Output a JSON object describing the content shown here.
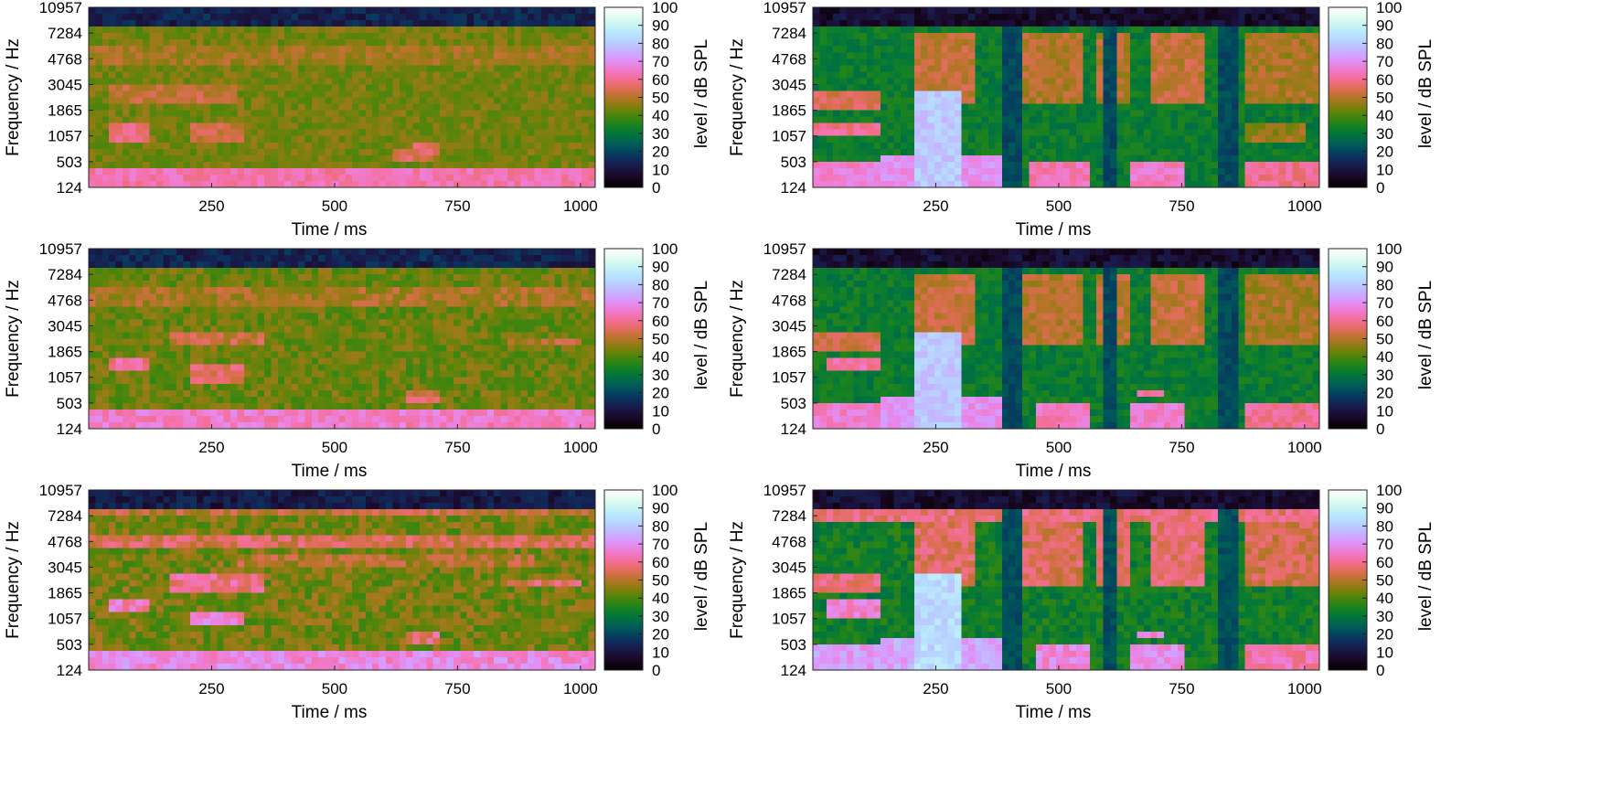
{
  "chart_data": [
    {
      "type": "heatmap",
      "panel": "unprocessed-1",
      "column": "left",
      "row": 1,
      "xlabel": "Time / ms",
      "ylabel": "Frequency / Hz",
      "x_ticks": [
        250,
        500,
        750,
        1000
      ],
      "xlim": [
        0,
        1030
      ],
      "y_ticks": [
        "124",
        "503",
        "1057",
        "1865",
        "3045",
        "4768",
        "7284",
        "10957"
      ],
      "colorbar_label": "level / dB SPL",
      "colorbar_ticks": [
        0,
        10,
        20,
        30,
        40,
        50,
        60,
        70,
        80,
        90,
        100
      ],
      "clim": [
        0,
        100
      ],
      "colormap": "cubehelix",
      "profile": {
        "bg": 44,
        "noise": 4,
        "top_band": 14,
        "bands": [
          {
            "f": [
              0,
              0.8
            ],
            "t": [
              0,
              1030
            ],
            "level": 63
          },
          {
            "f": [
              1.8,
              2.6
            ],
            "t": [
              40,
              130
            ],
            "level": 58
          },
          {
            "f": [
              1.8,
              2.6
            ],
            "t": [
              200,
              310
            ],
            "level": 53
          },
          {
            "f": [
              3.2,
              3.9
            ],
            "t": [
              40,
              300
            ],
            "level": 52
          },
          {
            "f": [
              1.2,
              1.8
            ],
            "t": [
              660,
              720
            ],
            "level": 56
          },
          {
            "f": [
              0.9,
              1.5
            ],
            "t": [
              620,
              700
            ],
            "level": 55
          },
          {
            "f": [
              4.7,
              5.4
            ],
            "t": [
              0,
              1030
            ],
            "level": 48
          }
        ]
      }
    },
    {
      "type": "heatmap",
      "panel": "processed-1",
      "column": "right",
      "row": 1,
      "xlabel": "Time / ms",
      "ylabel": "Frequency / Hz",
      "x_ticks": [
        250,
        500,
        750,
        1000
      ],
      "xlim": [
        0,
        1030
      ],
      "y_ticks": [
        "124",
        "503",
        "1057",
        "1865",
        "3045",
        "4768",
        "7284",
        "10957"
      ],
      "colorbar_label": "level / dB SPL",
      "colorbar_ticks": [
        0,
        10,
        20,
        30,
        40,
        50,
        60,
        70,
        80,
        90,
        100
      ],
      "clim": [
        0,
        100
      ],
      "colormap": "cubehelix",
      "profile": {
        "bg": 32,
        "noise": 4,
        "top_band": 8,
        "dark_cols": [
          [
            820,
            860
          ],
          [
            390,
            420
          ],
          [
            590,
            620
          ]
        ],
        "bands": [
          {
            "f": [
              0,
              1.0
            ],
            "t": [
              0,
              140
            ],
            "level": 66
          },
          {
            "f": [
              2.1,
              2.6
            ],
            "t": [
              0,
              140
            ],
            "level": 60
          },
          {
            "f": [
              3.0,
              3.8
            ],
            "t": [
              0,
              140
            ],
            "level": 55
          },
          {
            "f": [
              0,
              3.8
            ],
            "t": [
              200,
              300
            ],
            "level": 80
          },
          {
            "f": [
              0,
              1.2
            ],
            "t": [
              140,
              380
            ],
            "level": 70
          },
          {
            "f": [
              0,
              0.9
            ],
            "t": [
              440,
              560
            ],
            "level": 63
          },
          {
            "f": [
              0,
              1.1
            ],
            "t": [
              650,
              760
            ],
            "level": 65
          },
          {
            "f": [
              0,
              0.9
            ],
            "t": [
              880,
              1030
            ],
            "level": 60
          },
          {
            "f": [
              3.2,
              6.0
            ],
            "t": [
              210,
              330
            ],
            "level": 52
          },
          {
            "f": [
              3.2,
              6.0
            ],
            "t": [
              420,
              550
            ],
            "level": 50
          },
          {
            "f": [
              3.2,
              6.0
            ],
            "t": [
              570,
              650
            ],
            "level": 50
          },
          {
            "f": [
              3.2,
              6.0
            ],
            "t": [
              690,
              800
            ],
            "level": 52
          },
          {
            "f": [
              3.2,
              6.0
            ],
            "t": [
              880,
              1030
            ],
            "level": 49
          },
          {
            "f": [
              1.8,
              2.6
            ],
            "t": [
              880,
              1000
            ],
            "level": 47
          }
        ]
      }
    },
    {
      "type": "heatmap",
      "panel": "unprocessed-2",
      "column": "left",
      "row": 2,
      "xlabel": "Time / ms",
      "ylabel": "Frequency / Hz",
      "x_ticks": [
        250,
        500,
        750,
        1000
      ],
      "xlim": [
        0,
        1030
      ],
      "y_ticks": [
        "124",
        "503",
        "1057",
        "1865",
        "3045",
        "4768",
        "7284",
        "10957"
      ],
      "colorbar_label": "level / dB SPL",
      "colorbar_ticks": [
        0,
        10,
        20,
        30,
        40,
        50,
        60,
        70,
        80,
        90,
        100
      ],
      "clim": [
        0,
        100
      ],
      "colormap": "cubehelix",
      "profile": {
        "bg": 43,
        "noise": 5,
        "top_band": 14,
        "bands": [
          {
            "f": [
              0,
              0.8
            ],
            "t": [
              0,
              1030
            ],
            "level": 65
          },
          {
            "f": [
              2.2,
              2.8
            ],
            "t": [
              40,
              130
            ],
            "level": 60
          },
          {
            "f": [
              1.8,
              2.4
            ],
            "t": [
              200,
              310
            ],
            "level": 56
          },
          {
            "f": [
              3.2,
              3.8
            ],
            "t": [
              160,
              360
            ],
            "level": 53
          },
          {
            "f": [
              1.0,
              1.5
            ],
            "t": [
              650,
              720
            ],
            "level": 55
          },
          {
            "f": [
              4.8,
              5.4
            ],
            "t": [
              0,
              1030
            ],
            "level": 49
          },
          {
            "f": [
              3.2,
              3.6
            ],
            "t": [
              850,
              1000
            ],
            "level": 50
          }
        ]
      }
    },
    {
      "type": "heatmap",
      "panel": "processed-2",
      "column": "right",
      "row": 2,
      "xlabel": "Time / ms",
      "ylabel": "Frequency / Hz",
      "x_ticks": [
        250,
        500,
        750,
        1000
      ],
      "xlim": [
        0,
        1030
      ],
      "y_ticks": [
        "124",
        "503",
        "1057",
        "1865",
        "3045",
        "4768",
        "7284",
        "10957"
      ],
      "colorbar_label": "level / dB SPL",
      "colorbar_ticks": [
        0,
        10,
        20,
        30,
        40,
        50,
        60,
        70,
        80,
        90,
        100
      ],
      "clim": [
        0,
        100
      ],
      "colormap": "cubehelix",
      "profile": {
        "bg": 32,
        "noise": 4,
        "top_band": 8,
        "dark_cols": [
          [
            820,
            860
          ],
          [
            390,
            420
          ],
          [
            590,
            620
          ]
        ],
        "bands": [
          {
            "f": [
              0,
              1.0
            ],
            "t": [
              0,
              140
            ],
            "level": 66
          },
          {
            "f": [
              2.2,
              2.7
            ],
            "t": [
              30,
              140
            ],
            "level": 62
          },
          {
            "f": [
              3.0,
              3.8
            ],
            "t": [
              0,
              140
            ],
            "level": 54
          },
          {
            "f": [
              0,
              3.8
            ],
            "t": [
              200,
              300
            ],
            "level": 80
          },
          {
            "f": [
              0,
              1.2
            ],
            "t": [
              140,
              380
            ],
            "level": 70
          },
          {
            "f": [
              0,
              0.9
            ],
            "t": [
              450,
              560
            ],
            "level": 64
          },
          {
            "f": [
              0,
              1.1
            ],
            "t": [
              650,
              760
            ],
            "level": 66
          },
          {
            "f": [
              0,
              0.9
            ],
            "t": [
              880,
              1030
            ],
            "level": 60
          },
          {
            "f": [
              1.2,
              1.6
            ],
            "t": [
              660,
              720
            ],
            "level": 62
          },
          {
            "f": [
              3.2,
              6.0
            ],
            "t": [
              210,
              330
            ],
            "level": 52
          },
          {
            "f": [
              3.2,
              6.0
            ],
            "t": [
              420,
              550
            ],
            "level": 50
          },
          {
            "f": [
              3.2,
              6.0
            ],
            "t": [
              570,
              650
            ],
            "level": 51
          },
          {
            "f": [
              3.2,
              6.0
            ],
            "t": [
              690,
              800
            ],
            "level": 52
          },
          {
            "f": [
              3.2,
              6.0
            ],
            "t": [
              880,
              1030
            ],
            "level": 49
          }
        ]
      }
    },
    {
      "type": "heatmap",
      "panel": "unprocessed-3",
      "column": "left",
      "row": 3,
      "xlabel": "Time / ms",
      "ylabel": "Frequency / Hz",
      "x_ticks": [
        250,
        500,
        750,
        1000
      ],
      "xlim": [
        0,
        1030
      ],
      "y_ticks": [
        "124",
        "503",
        "1057",
        "1865",
        "3045",
        "4768",
        "7284",
        "10957"
      ],
      "colorbar_label": "level / dB SPL",
      "colorbar_ticks": [
        0,
        10,
        20,
        30,
        40,
        50,
        60,
        70,
        80,
        90,
        100
      ],
      "clim": [
        0,
        100
      ],
      "colormap": "cubehelix",
      "profile": {
        "bg": 44,
        "noise": 6,
        "top_band": 12,
        "bands": [
          {
            "f": [
              0,
              0.8
            ],
            "t": [
              0,
              1030
            ],
            "level": 68
          },
          {
            "f": [
              2.2,
              2.8
            ],
            "t": [
              40,
              130
            ],
            "level": 64
          },
          {
            "f": [
              1.7,
              2.3
            ],
            "t": [
              200,
              320
            ],
            "level": 66
          },
          {
            "f": [
              3.1,
              3.7
            ],
            "t": [
              160,
              360
            ],
            "level": 60
          },
          {
            "f": [
              4.7,
              5.2
            ],
            "t": [
              0,
              1030
            ],
            "level": 55
          },
          {
            "f": [
              5.9,
              6.3
            ],
            "t": [
              0,
              1030
            ],
            "level": 52
          },
          {
            "f": [
              1.0,
              1.5
            ],
            "t": [
              640,
              720
            ],
            "level": 58
          },
          {
            "f": [
              3.2,
              3.6
            ],
            "t": [
              850,
              1000
            ],
            "level": 56
          },
          {
            "f": [
              4.0,
              4.4
            ],
            "t": [
              300,
              900
            ],
            "level": 50
          }
        ]
      }
    },
    {
      "type": "heatmap",
      "panel": "processed-3",
      "column": "right",
      "row": 3,
      "xlabel": "Time / ms",
      "ylabel": "Frequency / Hz",
      "x_ticks": [
        250,
        500,
        750,
        1000
      ],
      "xlim": [
        0,
        1030
      ],
      "y_ticks": [
        "124",
        "503",
        "1057",
        "1865",
        "3045",
        "4768",
        "7284",
        "10957"
      ],
      "colorbar_label": "level / dB SPL",
      "colorbar_ticks": [
        0,
        10,
        20,
        30,
        40,
        50,
        60,
        70,
        80,
        90,
        100
      ],
      "clim": [
        0,
        100
      ],
      "colormap": "cubehelix",
      "profile": {
        "bg": 33,
        "noise": 5,
        "top_band": 8,
        "dark_cols": [
          [
            820,
            860
          ],
          [
            390,
            420
          ],
          [
            590,
            620
          ]
        ],
        "bands": [
          {
            "f": [
              0,
              1.0
            ],
            "t": [
              0,
              140
            ],
            "level": 72
          },
          {
            "f": [
              2.1,
              2.7
            ],
            "t": [
              30,
              140
            ],
            "level": 66
          },
          {
            "f": [
              3.0,
              3.8
            ],
            "t": [
              0,
              140
            ],
            "level": 58
          },
          {
            "f": [
              0,
              3.8
            ],
            "t": [
              200,
              300
            ],
            "level": 84
          },
          {
            "f": [
              0,
              1.2
            ],
            "t": [
              140,
              380
            ],
            "level": 74
          },
          {
            "f": [
              0,
              0.9
            ],
            "t": [
              450,
              560
            ],
            "level": 68
          },
          {
            "f": [
              0,
              1.1
            ],
            "t": [
              650,
              760
            ],
            "level": 70
          },
          {
            "f": [
              0,
              0.9
            ],
            "t": [
              880,
              1030
            ],
            "level": 63
          },
          {
            "f": [
              1.2,
              1.6
            ],
            "t": [
              660,
              720
            ],
            "level": 66
          },
          {
            "f": [
              3.2,
              6.0
            ],
            "t": [
              210,
              330
            ],
            "level": 56
          },
          {
            "f": [
              3.2,
              6.0
            ],
            "t": [
              420,
              550
            ],
            "level": 55
          },
          {
            "f": [
              3.2,
              6.0
            ],
            "t": [
              570,
              650
            ],
            "level": 55
          },
          {
            "f": [
              3.2,
              6.0
            ],
            "t": [
              690,
              800
            ],
            "level": 57
          },
          {
            "f": [
              3.2,
              6.0
            ],
            "t": [
              880,
              1030
            ],
            "level": 54
          },
          {
            "f": [
              5.8,
              6.4
            ],
            "t": [
              0,
              1030
            ],
            "level": 58
          }
        ]
      }
    }
  ]
}
